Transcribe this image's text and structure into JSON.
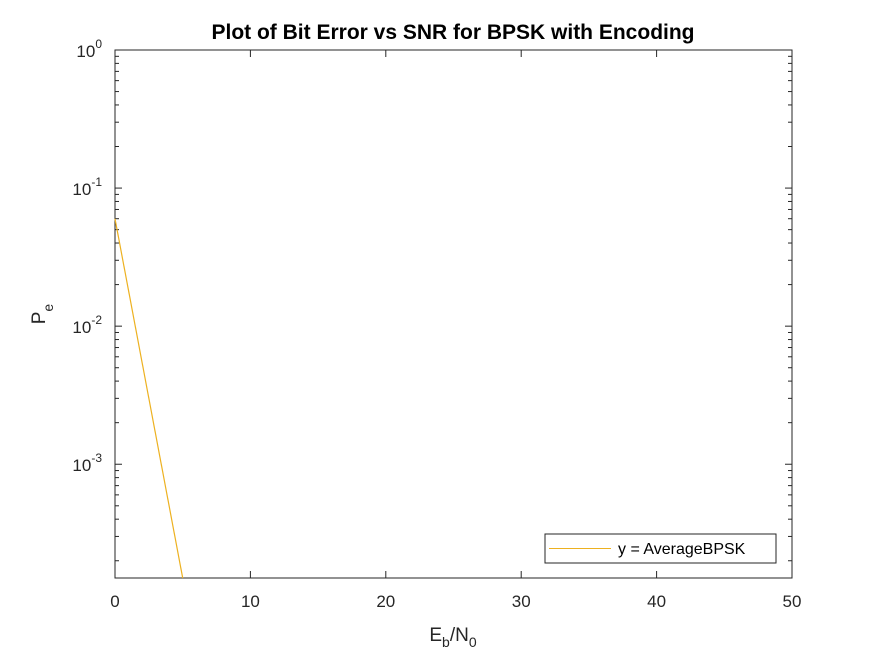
{
  "chart_data": {
    "type": "line",
    "title": "Plot of Bit Error vs SNR for BPSK with Encoding",
    "xlabel": {
      "base": "E",
      "base_sub": "b",
      "slash": "/N",
      "tail_sub": "0"
    },
    "ylabel": {
      "base": "P",
      "sub": "e"
    },
    "xlim": [
      0,
      50
    ],
    "ylim": [
      0.00015,
      1
    ],
    "yscale": "log",
    "xticks": [
      {
        "value": 0,
        "label": "0"
      },
      {
        "value": 10,
        "label": "10"
      },
      {
        "value": 20,
        "label": "20"
      },
      {
        "value": 30,
        "label": "30"
      },
      {
        "value": 40,
        "label": "40"
      },
      {
        "value": 50,
        "label": "50"
      }
    ],
    "yticks": [
      {
        "value": 1,
        "base": "10",
        "exp": "0"
      },
      {
        "value": 0.1,
        "base": "10",
        "exp": "-1"
      },
      {
        "value": 0.01,
        "base": "10",
        "exp": "-2"
      },
      {
        "value": 0.001,
        "base": "10",
        "exp": "-3"
      }
    ],
    "series": [
      {
        "name": "y = AverageBPSK",
        "color": "#EDB120",
        "x": [
          0,
          5
        ],
        "y": [
          0.06,
          0.00015
        ]
      }
    ],
    "legend": "bottom-right",
    "grid": false
  }
}
